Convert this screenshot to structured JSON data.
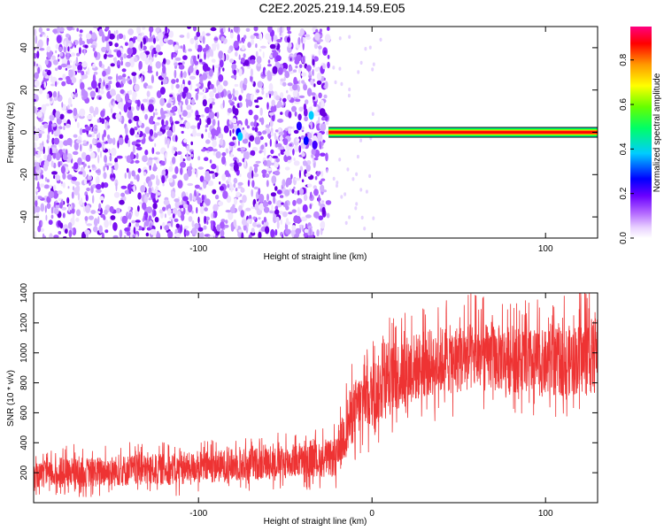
{
  "figure": {
    "title": "C2E2.2025.219.14.59.E05"
  },
  "chart_data": [
    {
      "type": "heatmap",
      "title": "C2E2.2025.219.14.59.E05",
      "xlabel": "Height of straight line (km)",
      "ylabel": "Frequency (Hz)",
      "xlim": [
        -195,
        130
      ],
      "ylim": [
        -50,
        50
      ],
      "x_ticks": [
        -100,
        0,
        100
      ],
      "x_tick_labels": [
        "-100",
        "",
        "100"
      ],
      "y_ticks": [
        -40,
        -20,
        0,
        20,
        40
      ],
      "y_tick_labels": [
        "-40",
        "-20",
        "0",
        "20",
        "40"
      ],
      "grid": false,
      "description": "Scattered low-amplitude (purple/white) noise for heights below about -25 km; a coherent narrow band centred at 0 Hz from about -25 km to 130 km with peak normalized amplitude (red core ~0.9, green/cyan edges).",
      "band": {
        "x_start": -25,
        "x_end": 130,
        "center_freq": 0,
        "peak_amplitude": 0.9
      },
      "colorbar": {
        "label": "Normalized spectral amplitude",
        "range": [
          0,
          0.95
        ],
        "ticks": [
          0.0,
          0.2,
          0.4,
          0.6,
          0.8
        ],
        "tick_labels": [
          "0.0",
          "0.2",
          "0.4",
          "0.6",
          "0.8"
        ],
        "colors": [
          "#ffffff",
          "#d9b3ff",
          "#8000ff",
          "#0000ff",
          "#00ffff",
          "#00ff00",
          "#ffff00",
          "#ff8000",
          "#ff0000",
          "#ff0080"
        ]
      }
    },
    {
      "type": "line",
      "xlabel": "Height of straight line (km)",
      "ylabel": "SNR (10 * v/v)",
      "xlim": [
        -195,
        130
      ],
      "ylim": [
        0,
        1400
      ],
      "x_ticks": [
        -100,
        0,
        100
      ],
      "x_tick_labels": [
        "-100",
        "0",
        "100"
      ],
      "y_ticks": [
        200,
        400,
        600,
        800,
        1000,
        1200,
        1400
      ],
      "y_tick_labels": [
        "200",
        "400",
        "600",
        "800",
        "1000",
        "1200",
        "1400"
      ],
      "grid": false,
      "color": "#ee3333",
      "envelope": {
        "x": [
          -195,
          -170,
          -140,
          -110,
          -80,
          -50,
          -30,
          -20,
          -15,
          -10,
          -5,
          0,
          5,
          10,
          20,
          30,
          40,
          60,
          80,
          100,
          120,
          130
        ],
        "y_low": [
          100,
          100,
          110,
          120,
          140,
          160,
          170,
          170,
          300,
          420,
          480,
          500,
          530,
          580,
          640,
          700,
          720,
          740,
          740,
          700,
          720,
          720
        ],
        "y_mid": [
          160,
          180,
          200,
          220,
          240,
          260,
          280,
          300,
          500,
          620,
          680,
          700,
          740,
          800,
          880,
          920,
          940,
          940,
          920,
          900,
          920,
          920
        ],
        "y_high": [
          260,
          300,
          320,
          330,
          360,
          380,
          400,
          430,
          700,
          820,
          900,
          950,
          1000,
          1050,
          1120,
          1150,
          1180,
          1200,
          1180,
          1150,
          1200,
          1250
        ]
      }
    }
  ]
}
